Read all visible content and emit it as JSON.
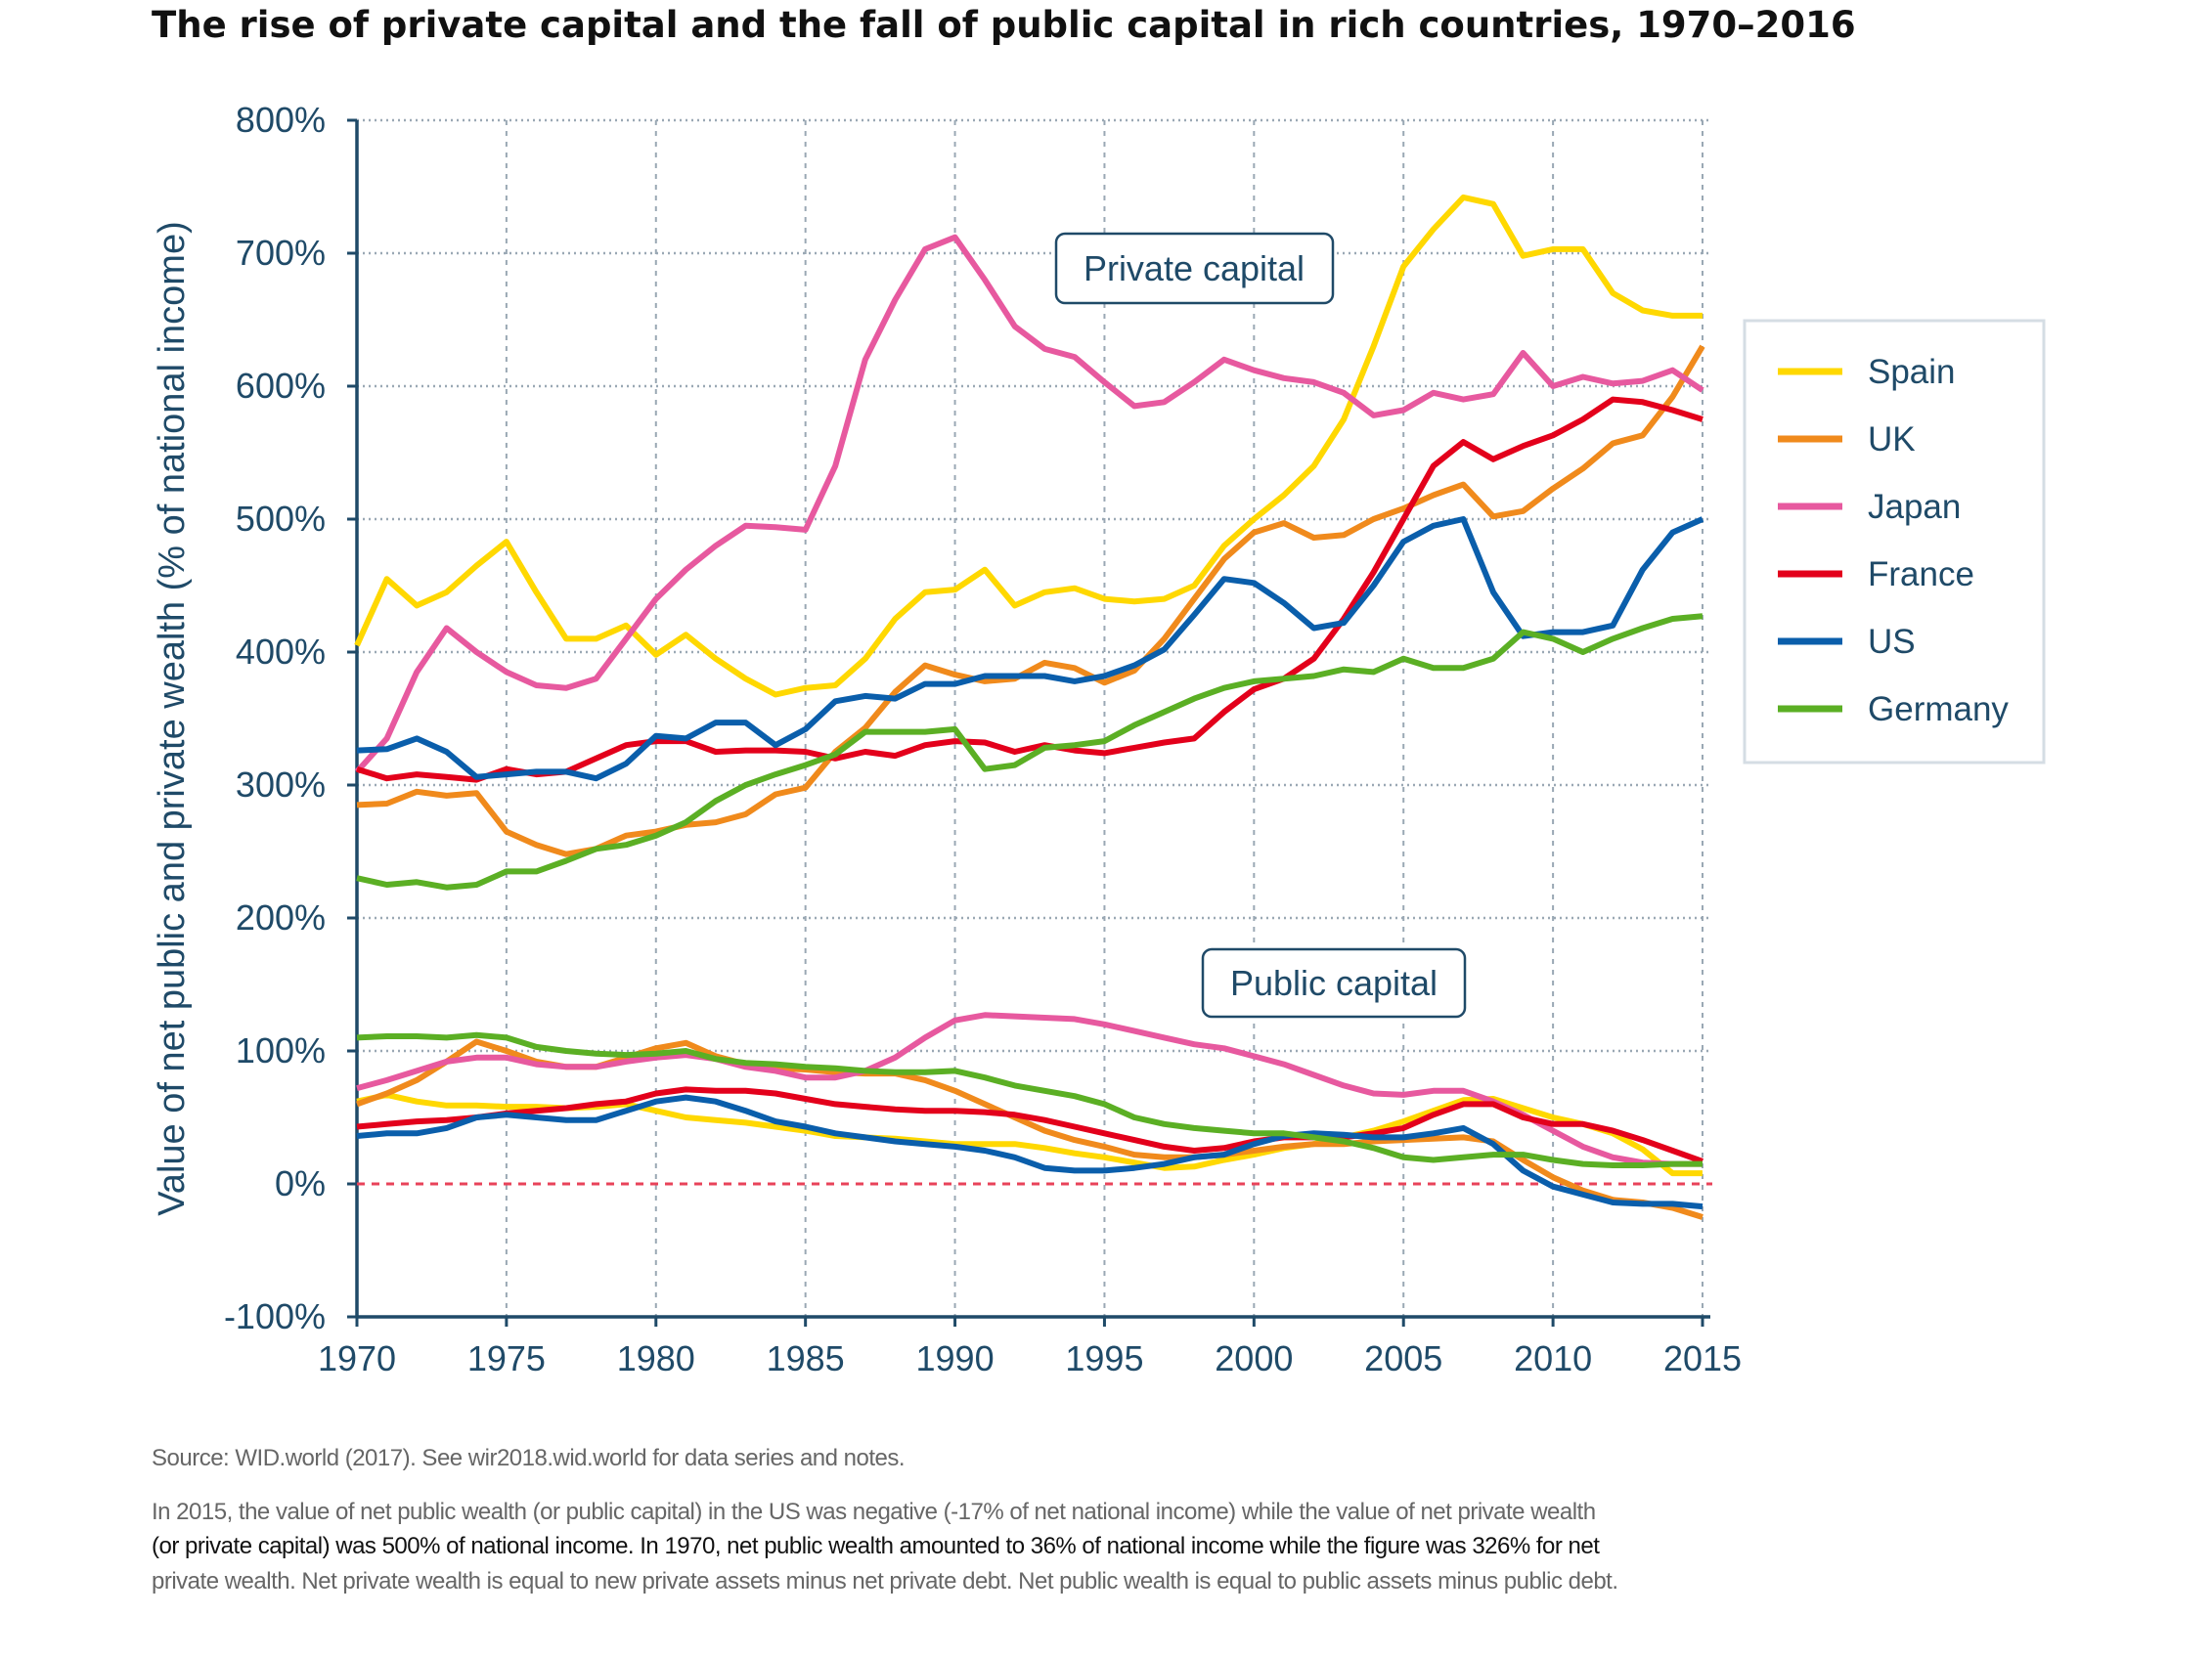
{
  "title": "The rise of private capital and the fall of public capital in rich countries, 1970–2016",
  "footer": {
    "source": "Source: WID.world (2017). See wir2018.wid.world for data series and notes.",
    "note_lines": [
      "In 2015, the value of net public wealth (or public capital) in the US was negative (-17% of net national income) while the value of net private wealth",
      "(or private capital) was 500% of national income. In 1970, net public wealth amounted to 36% of national income while the figure was 326% for net",
      "private wealth. Net private wealth is equal to new private assets minus net private debt. Net public wealth is equal to public assets minus public debt."
    ]
  },
  "chart_data": {
    "type": "line",
    "title": "The rise of private capital and the fall of public capital in rich countries, 1970–2016",
    "ylabel": "Value of net public and private wealth (% of national income)",
    "xlabel": "",
    "xlim": [
      1970,
      2015
    ],
    "ylim": [
      -100,
      800
    ],
    "x_ticks": [
      "1970",
      "1975",
      "1980",
      "1985",
      "1990",
      "1995",
      "2000",
      "2005",
      "2010",
      "2015"
    ],
    "y_ticks": [
      "-100%",
      "0%",
      "100%",
      "200%",
      "300%",
      "400%",
      "500%",
      "600%",
      "700%",
      "800%"
    ],
    "grid": "dotted",
    "zero_line": {
      "value": 0,
      "color": "#e8435a",
      "style": "dashed"
    },
    "legend_position": "right",
    "annotations": [
      "Private capital",
      "Public capital"
    ],
    "x_start": 1970,
    "series": [
      {
        "name": "Spain",
        "color": "#FFD800",
        "private": [
          405,
          455,
          435,
          445,
          465,
          483,
          445,
          410,
          410,
          420,
          398,
          413,
          395,
          380,
          368,
          373,
          375,
          395,
          425,
          445,
          447,
          462,
          435,
          445,
          448,
          440,
          438,
          440,
          450,
          480,
          500,
          518,
          540,
          575,
          630,
          690,
          718,
          742,
          737,
          698,
          703,
          703,
          670,
          657,
          653,
          653
        ],
        "public": [
          62,
          67,
          62,
          59,
          59,
          58,
          58,
          57,
          58,
          60,
          55,
          50,
          48,
          46,
          43,
          40,
          36,
          35,
          34,
          32,
          30,
          30,
          30,
          27,
          23,
          20,
          16,
          12,
          13,
          18,
          22,
          27,
          30,
          35,
          40,
          47,
          55,
          63,
          64,
          57,
          50,
          45,
          38,
          26,
          8,
          8
        ]
      },
      {
        "name": "UK",
        "color": "#F08A1C",
        "private": [
          285,
          286,
          295,
          292,
          294,
          265,
          255,
          248,
          252,
          262,
          265,
          270,
          272,
          278,
          293,
          298,
          325,
          343,
          370,
          390,
          383,
          378,
          380,
          392,
          388,
          377,
          386,
          410,
          440,
          470,
          490,
          497,
          486,
          488,
          500,
          508,
          518,
          526,
          502,
          506,
          523,
          538,
          557,
          563,
          592,
          630
        ],
        "public": [
          60,
          68,
          78,
          92,
          107,
          100,
          92,
          88,
          88,
          95,
          102,
          106,
          96,
          90,
          87,
          86,
          84,
          83,
          83,
          78,
          70,
          60,
          50,
          40,
          33,
          28,
          22,
          20,
          20,
          22,
          25,
          28,
          30,
          30,
          32,
          33,
          34,
          35,
          32,
          18,
          5,
          -5,
          -12,
          -14,
          -18,
          -25
        ]
      },
      {
        "name": "Japan",
        "color": "#E7599F",
        "private": [
          310,
          335,
          385,
          418,
          400,
          385,
          375,
          373,
          380,
          410,
          440,
          462,
          480,
          495,
          494,
          492,
          540,
          620,
          665,
          703,
          712,
          680,
          645,
          628,
          622,
          603,
          585,
          588,
          603,
          620,
          612,
          606,
          603,
          595,
          578,
          582,
          595,
          590,
          594,
          625,
          600,
          607,
          602,
          604,
          612,
          597
        ],
        "public": [
          72,
          78,
          85,
          92,
          95,
          95,
          90,
          88,
          88,
          92,
          95,
          97,
          94,
          88,
          85,
          80,
          80,
          85,
          95,
          110,
          123,
          127,
          126,
          125,
          124,
          120,
          115,
          110,
          105,
          102,
          96,
          90,
          82,
          74,
          68,
          67,
          70,
          70,
          62,
          52,
          40,
          28,
          20,
          16,
          15,
          15
        ]
      },
      {
        "name": "France",
        "color": "#E3001B",
        "private": [
          312,
          305,
          308,
          306,
          304,
          312,
          308,
          310,
          320,
          330,
          333,
          333,
          325,
          326,
          326,
          325,
          320,
          325,
          322,
          330,
          333,
          332,
          325,
          330,
          326,
          324,
          328,
          332,
          335,
          355,
          372,
          380,
          395,
          425,
          460,
          500,
          540,
          558,
          545,
          555,
          563,
          575,
          590,
          588,
          582,
          575
        ],
        "public": [
          43,
          45,
          47,
          48,
          50,
          53,
          55,
          57,
          60,
          62,
          68,
          71,
          70,
          70,
          68,
          64,
          60,
          58,
          56,
          55,
          55,
          54,
          52,
          48,
          43,
          38,
          33,
          28,
          25,
          27,
          32,
          35,
          35,
          35,
          38,
          42,
          52,
          60,
          60,
          50,
          45,
          45,
          40,
          33,
          25,
          17
        ]
      },
      {
        "name": "US",
        "color": "#0A5EAB",
        "private": [
          326,
          327,
          335,
          325,
          306,
          308,
          310,
          310,
          305,
          316,
          337,
          335,
          347,
          347,
          330,
          342,
          363,
          367,
          365,
          376,
          376,
          382,
          382,
          382,
          378,
          382,
          390,
          402,
          428,
          455,
          452,
          437,
          418,
          422,
          450,
          483,
          495,
          500,
          445,
          412,
          415,
          415,
          420,
          462,
          490,
          500
        ],
        "public": [
          36,
          38,
          38,
          42,
          50,
          52,
          50,
          48,
          48,
          55,
          62,
          65,
          62,
          55,
          47,
          43,
          38,
          35,
          32,
          30,
          28,
          25,
          20,
          12,
          10,
          10,
          12,
          15,
          20,
          22,
          30,
          36,
          38,
          37,
          35,
          35,
          38,
          42,
          30,
          10,
          -2,
          -8,
          -14,
          -15,
          -15,
          -17
        ]
      },
      {
        "name": "Germany",
        "color": "#5BAF24",
        "private": [
          230,
          225,
          227,
          223,
          225,
          235,
          235,
          243,
          252,
          255,
          262,
          272,
          288,
          300,
          308,
          315,
          323,
          340,
          340,
          340,
          342,
          312,
          315,
          328,
          330,
          333,
          345,
          355,
          365,
          373,
          378,
          380,
          382,
          387,
          385,
          395,
          388,
          388,
          395,
          415,
          410,
          400,
          410,
          418,
          425,
          427
        ],
        "public": [
          110,
          111,
          111,
          110,
          112,
          110,
          103,
          100,
          98,
          97,
          98,
          100,
          94,
          91,
          90,
          88,
          87,
          85,
          84,
          84,
          85,
          80,
          74,
          70,
          66,
          60,
          50,
          45,
          42,
          40,
          38,
          38,
          35,
          32,
          27,
          20,
          18,
          20,
          22,
          22,
          18,
          15,
          14,
          14,
          15,
          15
        ]
      }
    ]
  }
}
